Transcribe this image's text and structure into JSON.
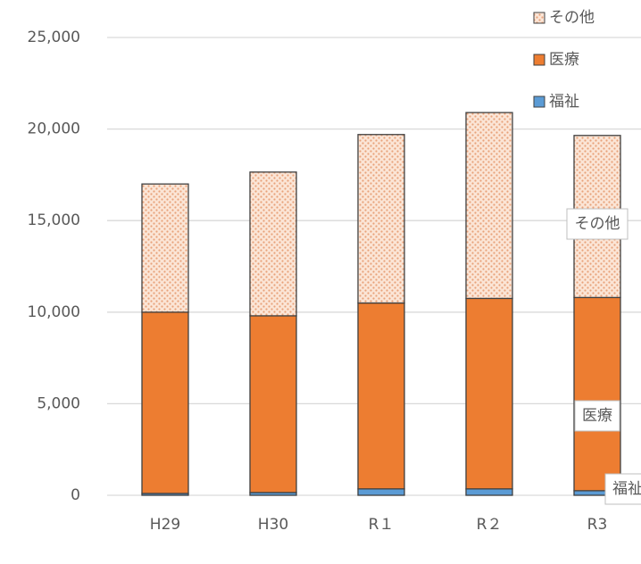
{
  "chart_data": {
    "type": "stacked_bar",
    "categories": [
      "H29",
      "H30",
      "R１",
      "R２",
      "R3"
    ],
    "series": [
      {
        "name": "福祉",
        "color": "#5b9bd5",
        "values": [
          100,
          150,
          350,
          350,
          250
        ]
      },
      {
        "name": "医療",
        "color": "#ed7d31",
        "values": [
          9900,
          9650,
          10150,
          10400,
          10550
        ]
      },
      {
        "name": "その他",
        "color": "#f4b183",
        "pattern": "dotted",
        "values": [
          7000,
          7850,
          9200,
          10150,
          8850
        ]
      }
    ],
    "ylim": [
      0,
      25000
    ],
    "yticks": [
      0,
      {
        "value": 5000,
        "label": "5,000"
      },
      {
        "value": 10000,
        "label": "10,000"
      },
      {
        "value": 15000,
        "label": "15,000"
      },
      {
        "value": 20000,
        "label": "20,000"
      },
      {
        "value": 25000,
        "label": "25,000"
      }
    ],
    "grid": true,
    "legend": "top-right"
  }
}
